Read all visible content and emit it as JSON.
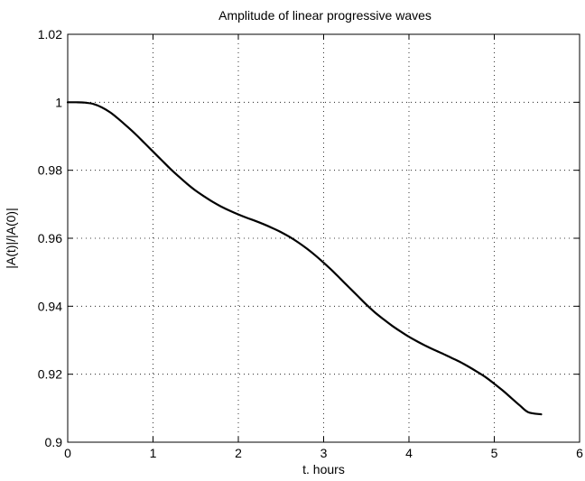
{
  "chart_data": {
    "type": "line",
    "title": "Amplitude of linear progressive waves",
    "xlabel": "t. hours",
    "ylabel": "|A(t)|/|A(0)|",
    "xlim": [
      0,
      6
    ],
    "ylim": [
      0.9,
      1.02
    ],
    "xticks": [
      0,
      1,
      2,
      3,
      4,
      5,
      6
    ],
    "yticks": [
      0.9,
      0.92,
      0.94,
      0.96,
      0.98,
      1,
      1.02
    ],
    "xtick_labels": [
      "0",
      "1",
      "2",
      "3",
      "4",
      "5",
      "6"
    ],
    "ytick_labels": [
      "0.9",
      "0.92",
      "0.94",
      "0.96",
      "0.98",
      "1",
      "1.02"
    ],
    "grid": true,
    "series": [
      {
        "x": [
          0,
          0.1,
          0.2,
          0.3,
          0.4,
          0.5,
          0.6,
          0.7,
          0.8,
          0.9,
          1.0,
          1.1,
          1.2,
          1.3,
          1.4,
          1.5,
          1.6,
          1.7,
          1.8,
          1.9,
          2.0,
          2.1,
          2.2,
          2.3,
          2.4,
          2.5,
          2.6,
          2.7,
          2.8,
          2.9,
          3.0,
          3.1,
          3.2,
          3.3,
          3.4,
          3.5,
          3.6,
          3.7,
          3.8,
          3.9,
          4.0,
          4.1,
          4.2,
          4.3,
          4.4,
          4.5,
          4.6,
          4.7,
          4.8,
          4.9,
          5.0,
          5.1,
          5.2,
          5.3,
          5.4,
          5.55
        ],
        "values": [
          1.0,
          1.0,
          0.9999,
          0.9995,
          0.9985,
          0.997,
          0.995,
          0.9928,
          0.9905,
          0.988,
          0.9855,
          0.983,
          0.9805,
          0.9782,
          0.976,
          0.974,
          0.9723,
          0.9707,
          0.9693,
          0.9681,
          0.967,
          0.966,
          0.9651,
          0.9641,
          0.963,
          0.9618,
          0.9604,
          0.9588,
          0.957,
          0.955,
          0.9528,
          0.9505,
          0.948,
          0.9455,
          0.943,
          0.9405,
          0.9382,
          0.9362,
          0.9343,
          0.9326,
          0.931,
          0.9296,
          0.9283,
          0.9271,
          0.926,
          0.9248,
          0.9236,
          0.9222,
          0.9207,
          0.9191,
          0.9172,
          0.9152,
          0.913,
          0.9108,
          0.9088,
          0.9082
        ]
      }
    ]
  }
}
